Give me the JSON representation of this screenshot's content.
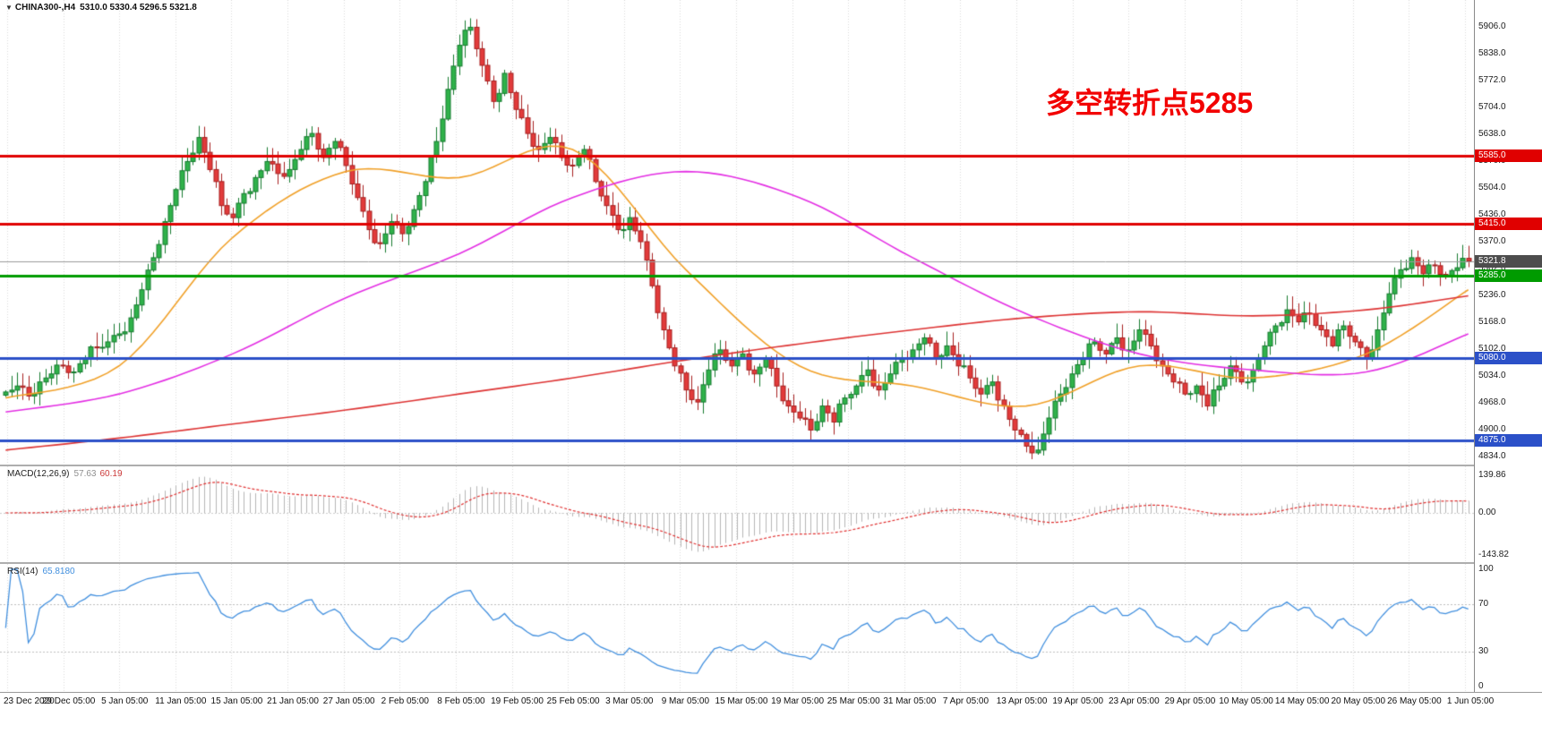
{
  "header": {
    "symbol_period": "CHINA300-,H4",
    "quotes": "5310.0 5330.4 5296.5 5321.8"
  },
  "annotation": {
    "text": "多空转折点5285",
    "color": "#f20000"
  },
  "macd_panel": {
    "name": "MACD(12,26,9)",
    "main": "57.63",
    "signal": "60.19"
  },
  "rsi_panel": {
    "name": "RSI(14)",
    "value": "65.8180"
  },
  "chart_data": {
    "type": "candlestick",
    "symbol": "CHINA300-",
    "timeframe": "H4",
    "last_ohlc": {
      "open": 5310.0,
      "high": 5330.4,
      "low": 5296.5,
      "close": 5321.8
    },
    "ylim": [
      4834.0,
      5906.0
    ],
    "y_axis_labels": [
      "5906.0",
      "5838.0",
      "5772.0",
      "5704.0",
      "5638.0",
      "5570.0",
      "5504.0",
      "5436.0",
      "5370.0",
      "5302.0",
      "5236.0",
      "5168.0",
      "5102.0",
      "5034.0",
      "4968.0",
      "4900.0",
      "4834.0"
    ],
    "x_labels": [
      "23 Dec 2020",
      "29 Dec 05:00",
      "5 Jan 05:00",
      "11 Jan 05:00",
      "15 Jan 05:00",
      "21 Jan 05:00",
      "27 Jan 05:00",
      "2 Feb 05:00",
      "8 Feb 05:00",
      "19 Feb 05:00",
      "25 Feb 05:00",
      "3 Mar 05:00",
      "9 Mar 05:00",
      "15 Mar 05:00",
      "19 Mar 05:00",
      "25 Mar 05:00",
      "31 Mar 05:00",
      "7 Apr 05:00",
      "13 Apr 05:00",
      "19 Apr 05:00",
      "23 Apr 05:00",
      "29 Apr 05:00",
      "10 May 05:00",
      "14 May 05:00",
      "20 May 05:00",
      "26 May 05:00",
      "1 Jun 05:00"
    ],
    "closes": [
      4995,
      5010,
      4985,
      5020,
      5040,
      5060,
      5045,
      5080,
      5105,
      5120,
      5140,
      5180,
      5250,
      5330,
      5420,
      5500,
      5570,
      5630,
      5550,
      5460,
      5430,
      5490,
      5530,
      5570,
      5540,
      5550,
      5600,
      5640,
      5580,
      5620,
      5560,
      5480,
      5400,
      5365,
      5420,
      5390,
      5450,
      5520,
      5620,
      5750,
      5860,
      5905,
      5810,
      5720,
      5790,
      5700,
      5640,
      5600,
      5630,
      5580,
      5560,
      5600,
      5520,
      5460,
      5400,
      5430,
      5370,
      5260,
      5150,
      5060,
      5000,
      4970,
      5050,
      5100,
      5060,
      5090,
      5040,
      5080,
      5010,
      4960,
      4930,
      4900,
      4960,
      4920,
      4980,
      5010,
      5050,
      5000,
      5040,
      5080,
      5100,
      5130,
      5080,
      5110,
      5060,
      5030,
      4990,
      5020,
      4960,
      4900,
      4860,
      4850,
      4930,
      4990,
      5040,
      5080,
      5120,
      5090,
      5130,
      5100,
      5150,
      5110,
      5060,
      5020,
      4990,
      5010,
      4960,
      5010,
      5060,
      5020,
      5050,
      5110,
      5160,
      5200,
      5170,
      5190,
      5150,
      5110,
      5160,
      5120,
      5080,
      5150,
      5240,
      5300,
      5330,
      5290,
      5310,
      5285,
      5305,
      5322
    ],
    "waypoint_indices": [
      0,
      10,
      20,
      30,
      40,
      50,
      60,
      70,
      80,
      90,
      100,
      110,
      120,
      129
    ],
    "moving_averages": [
      {
        "name": "fast-ma",
        "color": "#f0a028",
        "values": [
          4980,
          5060,
          5380,
          5545,
          5530,
          5600,
          5300,
          5060,
          5010,
          4960,
          5060,
          5030,
          5090,
          5250
        ]
      },
      {
        "name": "mid-ma",
        "color": "#e32ee3",
        "values": [
          4945,
          4990,
          5090,
          5230,
          5340,
          5480,
          5545,
          5480,
          5330,
          5190,
          5090,
          5050,
          5045,
          5140
        ]
      },
      {
        "name": "slow-ma",
        "color": "#dd3333",
        "values": [
          4850,
          4880,
          4915,
          4950,
          4990,
          5030,
          5075,
          5115,
          5150,
          5180,
          5195,
          5185,
          5200,
          5235
        ]
      }
    ],
    "levels": [
      {
        "value": 5585.0,
        "label": "5585.0",
        "color": "#e00000",
        "width": 3
      },
      {
        "value": 5415.0,
        "label": "5415.0",
        "color": "#e00000",
        "width": 3
      },
      {
        "value": 5285.0,
        "label": "5285.0",
        "color": "#009b00",
        "width": 3
      },
      {
        "value": 5080.0,
        "label": "5080.0",
        "color": "#2b50c8",
        "width": 3
      },
      {
        "value": 4875.0,
        "label": "4875.0",
        "color": "#2b50c8",
        "width": 3
      }
    ],
    "current_price": {
      "value": 5321.8,
      "label": "5321.8",
      "line_color": "#9a9a9a",
      "badge_color": "#4d4d4d"
    },
    "colors": {
      "up_fill": "#2fb24a",
      "up_stroke": "#157a2e",
      "down_fill": "#e23b3b",
      "down_stroke": "#a61f1f",
      "grid": "#d9d9d9",
      "background": "#ffffff"
    },
    "indicators": [
      {
        "name": "MACD",
        "params": "12,26,9",
        "main": 57.63,
        "signal": 60.19,
        "axis_labels": [
          "139.86",
          "0.00",
          "-143.82"
        ],
        "histogram_color": "#b5b5b5",
        "signal_color": "#e03030"
      },
      {
        "name": "RSI",
        "params": "14",
        "value": 65.818,
        "axis_labels": [
          "100",
          "70",
          "30",
          "0"
        ],
        "levels": [
          70,
          30
        ],
        "line_color": "#418fde"
      }
    ]
  }
}
